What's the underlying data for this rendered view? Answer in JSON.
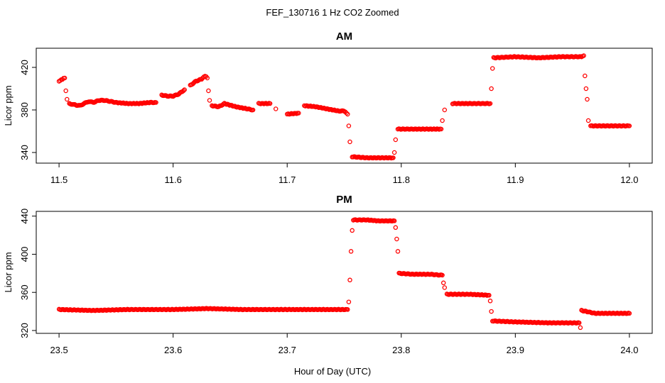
{
  "title": "FEF_130716  1 Hz CO2 Zoomed",
  "xlabel": "Hour of Day (UTC)",
  "colors": {
    "points": "#ff0000",
    "axes": "#000000",
    "background": "#ffffff"
  },
  "chart_data": [
    {
      "type": "scatter",
      "title": "AM",
      "xlabel": "",
      "ylabel": "Licor ppm",
      "xlim": [
        11.48,
        12.02
      ],
      "ylim": [
        330,
        438
      ],
      "x_ticks": [
        "11.5",
        "11.6",
        "11.7",
        "11.8",
        "11.9",
        "12.0"
      ],
      "y_ticks": [
        "340",
        "380",
        "420"
      ],
      "grid": false,
      "legend": "none",
      "series": [
        {
          "marker": "open-circle",
          "color": "#ff0000",
          "points": [
            [
              11.5,
              407
            ],
            [
              11.503,
              409
            ],
            [
              11.505,
              410
            ],
            [
              11.506,
              398
            ],
            [
              11.507,
              390
            ],
            [
              11.509,
              386
            ],
            [
              11.513,
              385
            ],
            [
              11.518,
              384
            ],
            [
              11.522,
              386
            ],
            [
              11.526,
              388
            ],
            [
              11.53,
              387
            ],
            [
              11.535,
              389
            ],
            [
              11.54,
              389
            ],
            [
              11.545,
              388
            ],
            [
              11.55,
              387
            ],
            [
              11.56,
              386
            ],
            [
              11.57,
              386
            ],
            [
              11.58,
              387
            ],
            [
              11.585,
              387
            ],
            [
              11.59,
              394
            ],
            [
              11.595,
              393
            ],
            [
              11.6,
              393
            ],
            [
              11.605,
              395
            ],
            [
              11.61,
              399
            ],
            [
              11.615,
              403
            ],
            [
              11.62,
              407
            ],
            [
              11.625,
              409
            ],
            [
              11.628,
              412
            ],
            [
              11.63,
              410
            ],
            [
              11.631,
              398
            ],
            [
              11.632,
              389
            ],
            [
              11.634,
              384
            ],
            [
              11.64,
              383
            ],
            [
              11.645,
              386
            ],
            [
              11.655,
              383
            ],
            [
              11.665,
              381
            ],
            [
              11.67,
              380
            ],
            [
              11.675,
              386
            ],
            [
              11.685,
              386
            ],
            [
              11.69,
              381
            ],
            [
              11.7,
              376
            ],
            [
              11.71,
              377
            ],
            [
              11.715,
              384
            ],
            [
              11.725,
              383
            ],
            [
              11.735,
              381
            ],
            [
              11.745,
              379
            ],
            [
              11.75,
              379
            ],
            [
              11.753,
              376
            ],
            [
              11.754,
              365
            ],
            [
              11.755,
              350
            ],
            [
              11.757,
              336
            ],
            [
              11.77,
              335
            ],
            [
              11.785,
              335
            ],
            [
              11.793,
              335
            ],
            [
              11.794,
              340
            ],
            [
              11.795,
              352
            ],
            [
              11.797,
              362
            ],
            [
              11.81,
              362
            ],
            [
              11.825,
              362
            ],
            [
              11.835,
              362
            ],
            [
              11.836,
              370
            ],
            [
              11.838,
              380
            ],
            [
              11.845,
              386
            ],
            [
              11.86,
              386
            ],
            [
              11.878,
              386
            ],
            [
              11.879,
              400
            ],
            [
              11.88,
              419
            ],
            [
              11.881,
              429
            ],
            [
              11.9,
              430
            ],
            [
              11.92,
              429
            ],
            [
              11.94,
              430
            ],
            [
              11.958,
              430
            ],
            [
              11.96,
              431
            ],
            [
              11.961,
              412
            ],
            [
              11.962,
              400
            ],
            [
              11.963,
              390
            ],
            [
              11.964,
              370
            ],
            [
              11.966,
              365
            ],
            [
              11.98,
              365
            ],
            [
              12.0,
              365
            ]
          ]
        }
      ]
    },
    {
      "type": "scatter",
      "title": "PM",
      "xlabel": "Hour of Day (UTC)",
      "ylabel": "Licor ppm",
      "xlim": [
        23.48,
        24.02
      ],
      "ylim": [
        317,
        445
      ],
      "x_ticks": [
        "23.5",
        "23.6",
        "23.7",
        "23.8",
        "23.9",
        "24.0"
      ],
      "y_ticks": [
        "320",
        "360",
        "400",
        "440"
      ],
      "grid": false,
      "legend": "none",
      "series": [
        {
          "marker": "open-circle",
          "color": "#ff0000",
          "points": [
            [
              23.5,
              342
            ],
            [
              23.53,
              341
            ],
            [
              23.56,
              342
            ],
            [
              23.6,
              342
            ],
            [
              23.63,
              343
            ],
            [
              23.66,
              342
            ],
            [
              23.7,
              342
            ],
            [
              23.73,
              342
            ],
            [
              23.753,
              342
            ],
            [
              23.754,
              350
            ],
            [
              23.755,
              373
            ],
            [
              23.756,
              403
            ],
            [
              23.757,
              425
            ],
            [
              23.758,
              436
            ],
            [
              23.77,
              436
            ],
            [
              23.78,
              435
            ],
            [
              23.794,
              435
            ],
            [
              23.795,
              428
            ],
            [
              23.796,
              416
            ],
            [
              23.797,
              403
            ],
            [
              23.798,
              380
            ],
            [
              23.81,
              379
            ],
            [
              23.825,
              379
            ],
            [
              23.836,
              378
            ],
            [
              23.837,
              370
            ],
            [
              23.838,
              365
            ],
            [
              23.84,
              358
            ],
            [
              23.86,
              358
            ],
            [
              23.877,
              357
            ],
            [
              23.878,
              351
            ],
            [
              23.879,
              340
            ],
            [
              23.88,
              330
            ],
            [
              23.9,
              329
            ],
            [
              23.93,
              328
            ],
            [
              23.956,
              328
            ],
            [
              23.957,
              323
            ],
            [
              23.958,
              341
            ],
            [
              23.97,
              338
            ],
            [
              23.985,
              338
            ],
            [
              24.0,
              338
            ]
          ]
        }
      ]
    }
  ]
}
